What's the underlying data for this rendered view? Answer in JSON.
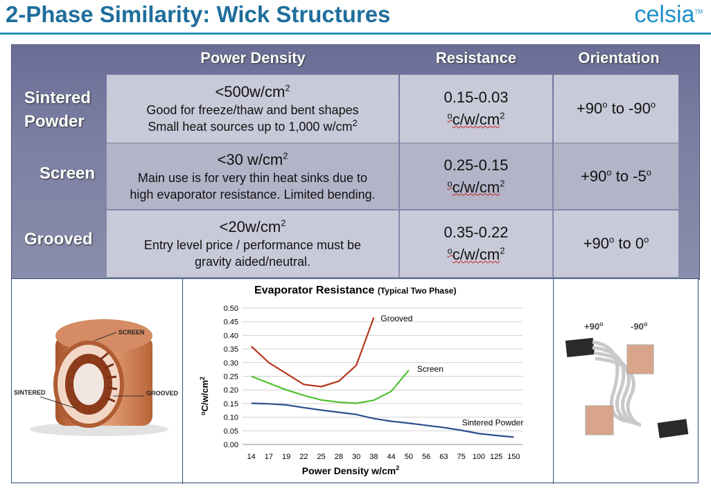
{
  "slide": {
    "title": "2-Phase Similarity:  Wick Structures",
    "logo": "celsia"
  },
  "table": {
    "headers": [
      "Power Density",
      "Resistance",
      "Orientation"
    ],
    "rows": [
      {
        "label_line1": "Sintered",
        "label_line2": "Powder",
        "density_value": "<500w/cm",
        "density_sup": "2",
        "density_desc1": "Good for freeze/thaw and bent shapes",
        "density_desc2": "Small heat sources up to 1,000 w/cm",
        "density_desc2_sup": "2",
        "resistance_range": "0.15-0.03",
        "resistance_unit_pre": "o",
        "resistance_unit": "c/w/cm",
        "resistance_unit_sup": "2",
        "orient_a": "+90",
        "orient_mid": " to ",
        "orient_b": "-90",
        "orient_sup": "o"
      },
      {
        "label_line1": "Screen",
        "label_line2": "",
        "density_value": "<30 w/cm",
        "density_sup": "2",
        "density_desc1": "Main use is for very thin heat sinks due to",
        "density_desc2": "high evaporator resistance. Limited bending.",
        "density_desc2_sup": "",
        "resistance_range": "0.25-0.15",
        "resistance_unit_pre": "o",
        "resistance_unit": "c/w/cm",
        "resistance_unit_sup": "2",
        "orient_a": "+90",
        "orient_mid": " to ",
        "orient_b": "-5",
        "orient_sup": "o"
      },
      {
        "label_line1": "Grooved",
        "label_line2": "",
        "density_value": "<20w/cm",
        "density_sup": "2",
        "density_desc1": "Entry level price / performance must be",
        "density_desc2": "gravity aided/neutral.",
        "density_desc2_sup": "",
        "resistance_range": "0.35-0.22",
        "resistance_unit_pre": "o",
        "resistance_unit": "c/w/cm",
        "resistance_unit_sup": "2",
        "orient_a": "+90",
        "orient_mid": " to ",
        "orient_b": "0",
        "orient_sup": "o"
      }
    ]
  },
  "illustration": {
    "labels": [
      "SCREEN",
      "SINTERED",
      "GROOVED"
    ]
  },
  "orientation_photo": {
    "labels": [
      "+90",
      "-90"
    ],
    "sup": "o"
  },
  "chart_data": {
    "type": "line",
    "title": "Evaporator Resistance",
    "title_suffix": "(Typical Two Phase)",
    "xlabel": "Power Density w/cm",
    "xlabel_sup": "2",
    "ylabel": "oC/w/cm2",
    "categories": [
      "14",
      "17",
      "19",
      "22",
      "25",
      "28",
      "30",
      "38",
      "44",
      "50",
      "56",
      "63",
      "75",
      "100",
      "125",
      "150"
    ],
    "ylim": [
      0,
      0.5
    ],
    "yticks": [
      "0.00",
      "0.05",
      "0.10",
      "0.15",
      "0.20",
      "0.25",
      "0.30",
      "0.35",
      "0.40",
      "0.45",
      "0.50"
    ],
    "grid": true,
    "series": [
      {
        "name": "Grooved",
        "color": "#b5361c",
        "values": [
          0.36,
          0.3,
          0.26,
          0.22,
          0.212,
          0.232,
          0.29,
          0.465,
          null,
          null,
          null,
          null,
          null,
          null,
          null,
          null
        ]
      },
      {
        "name": "Screen",
        "color": "#4fbf2e",
        "values": [
          0.25,
          0.225,
          0.2,
          0.18,
          0.163,
          0.155,
          0.151,
          0.162,
          0.195,
          0.272,
          null,
          null,
          null,
          null,
          null,
          null
        ]
      },
      {
        "name": "Sintered Powder",
        "color": "#2d4f8e",
        "values": [
          0.151,
          0.149,
          0.145,
          0.135,
          0.126,
          0.118,
          0.11,
          0.095,
          0.085,
          0.078,
          0.07,
          0.062,
          0.052,
          0.04,
          0.033,
          0.027
        ]
      }
    ]
  }
}
